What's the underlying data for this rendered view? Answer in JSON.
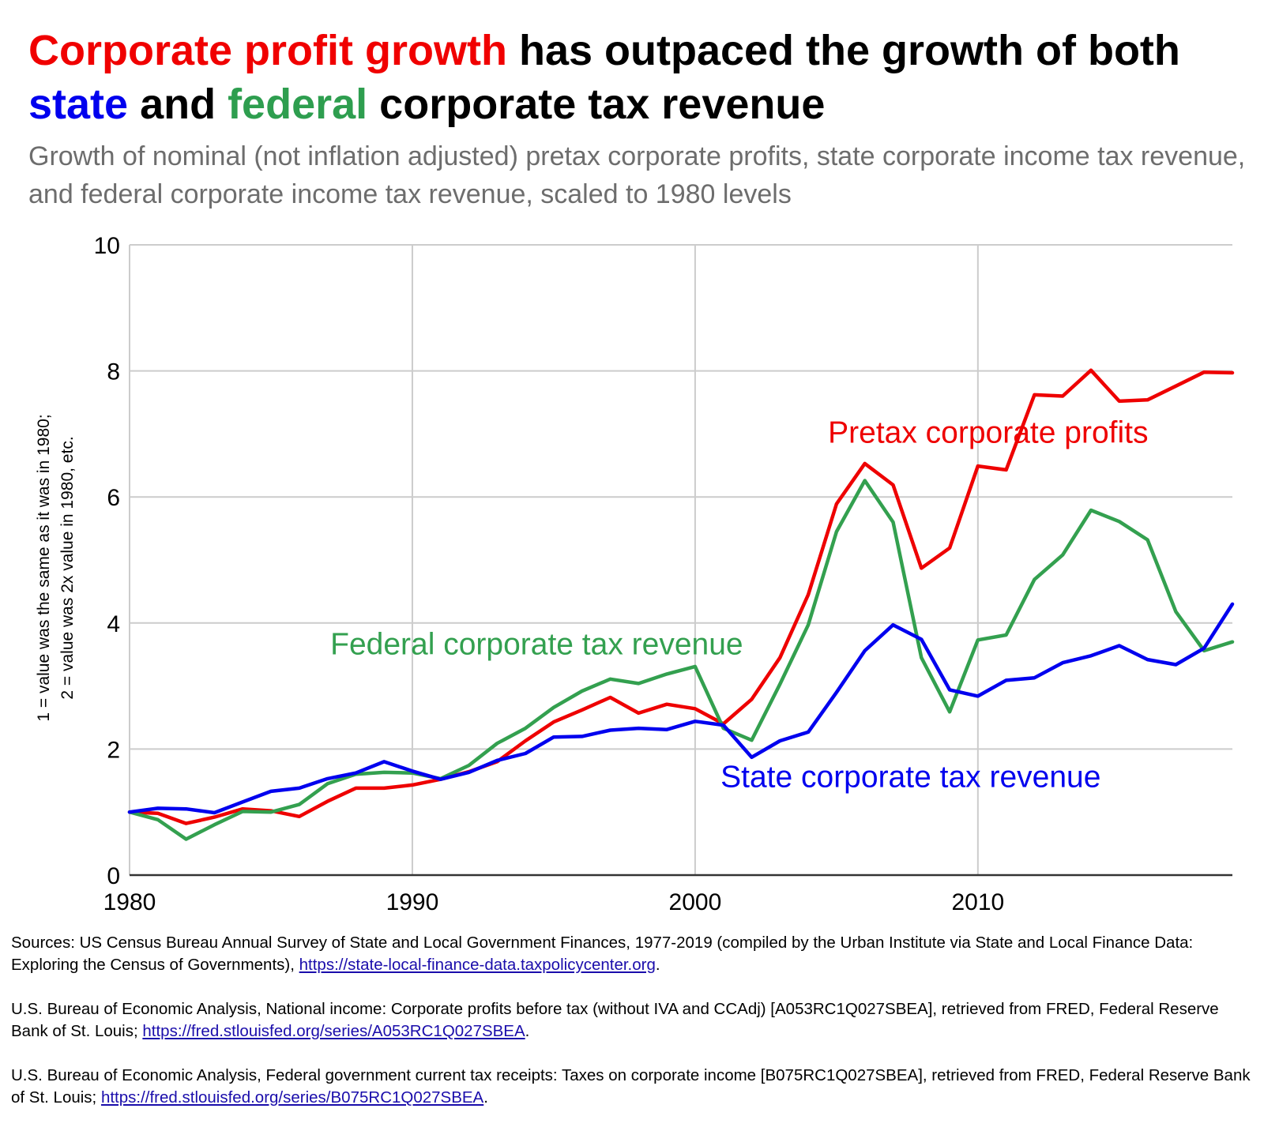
{
  "header": {
    "title_parts": [
      {
        "text": "Corporate profit growth",
        "color": "#f00000"
      },
      {
        "text": " has outpaced the growth of both ",
        "color": "#000000"
      },
      {
        "text": "state",
        "color": "#0000ee"
      },
      {
        "text": " and ",
        "color": "#000000"
      },
      {
        "text": "federal",
        "color": "#2e9e4f"
      },
      {
        "text": " corporate tax revenue",
        "color": "#000000"
      }
    ],
    "subtitle": "Growth of nominal (not inflation adjusted) pretax corporate profits, state corporate income tax revenue, and federal corporate income tax revenue, scaled to 1980 levels"
  },
  "chart_data": {
    "type": "line",
    "title": "",
    "xlabel": "",
    "ylabel_lines": [
      "1 = value was the same as it was in 1980;",
      "2 = value was 2x value in 1980, etc."
    ],
    "xlim": [
      1980,
      2019
    ],
    "ylim": [
      0,
      10
    ],
    "x_ticks": [
      1980,
      1990,
      2000,
      2010
    ],
    "y_ticks": [
      0,
      2,
      4,
      6,
      8,
      10
    ],
    "grid": true,
    "legend": "inline labels",
    "x": [
      1980,
      1981,
      1982,
      1983,
      1984,
      1985,
      1986,
      1987,
      1988,
      1989,
      1990,
      1991,
      1992,
      1993,
      1994,
      1995,
      1996,
      1997,
      1998,
      1999,
      2000,
      2001,
      2002,
      2003,
      2004,
      2005,
      2006,
      2007,
      2008,
      2009,
      2010,
      2011,
      2012,
      2013,
      2014,
      2015,
      2016,
      2017,
      2018,
      2019
    ],
    "series": [
      {
        "name": "Pretax corporate profits",
        "color": "#ee0000",
        "values": [
          1.0,
          0.98,
          0.82,
          0.92,
          1.05,
          1.02,
          0.93,
          1.17,
          1.38,
          1.38,
          1.43,
          1.52,
          1.64,
          1.8,
          2.13,
          2.43,
          2.62,
          2.82,
          2.57,
          2.71,
          2.64,
          2.4,
          2.79,
          3.45,
          4.45,
          5.89,
          6.53,
          6.19,
          4.87,
          5.19,
          6.49,
          6.43,
          7.62,
          7.6,
          8.01,
          7.52,
          7.54,
          7.76,
          7.98,
          7.97
        ]
      },
      {
        "name": "Federal corporate tax revenue",
        "color": "#33a04f",
        "values": [
          1.0,
          0.88,
          0.57,
          0.8,
          1.01,
          1.0,
          1.12,
          1.45,
          1.6,
          1.63,
          1.62,
          1.53,
          1.74,
          2.09,
          2.33,
          2.66,
          2.92,
          3.11,
          3.04,
          3.19,
          3.31,
          2.33,
          2.14,
          3.03,
          3.97,
          5.45,
          6.26,
          5.6,
          3.45,
          2.59,
          3.73,
          3.81,
          4.69,
          5.08,
          5.79,
          5.61,
          5.32,
          4.18,
          3.56,
          3.7
        ]
      },
      {
        "name": "State corporate tax revenue",
        "color": "#0000ee",
        "values": [
          1.0,
          1.06,
          1.05,
          0.99,
          1.16,
          1.33,
          1.38,
          1.53,
          1.62,
          1.8,
          1.65,
          1.52,
          1.63,
          1.82,
          1.93,
          2.19,
          2.2,
          2.3,
          2.33,
          2.31,
          2.44,
          2.38,
          1.87,
          2.13,
          2.27,
          2.9,
          3.56,
          3.97,
          3.74,
          2.94,
          2.84,
          3.09,
          3.13,
          3.37,
          3.48,
          3.64,
          3.42,
          3.34,
          3.6,
          4.3
        ]
      }
    ],
    "annotations": [
      {
        "text": "Pretax corporate profits",
        "color": "#ee0000",
        "x": 2004.7,
        "y": 6.86
      },
      {
        "text": "Federal corporate tax revenue",
        "color": "#33a04f",
        "x": 1987.1,
        "y": 3.5
      },
      {
        "text": "State corporate tax revenue",
        "color": "#0000ee",
        "x": 2000.9,
        "y": 1.4
      }
    ]
  },
  "sources": [
    {
      "text": "Sources: US Census Bureau Annual Survey of State and Local Government Finances, 1977-2019 (compiled by the Urban Institute via State and Local Finance Data: Exploring the Census of Governments), ",
      "link": "https://state-local-finance-data.taxpolicycenter.org",
      "tail": "."
    },
    {
      "text": "U.S. Bureau of Economic Analysis, National income: Corporate profits before tax (without IVA and CCAdj) [A053RC1Q027SBEA], retrieved from FRED, Federal Reserve Bank of St. Louis; ",
      "link": "https://fred.stlouisfed.org/series/A053RC1Q027SBEA",
      "tail": "."
    },
    {
      "text": "U.S. Bureau of Economic Analysis, Federal government current tax receipts: Taxes on corporate income [B075RC1Q027SBEA], retrieved from FRED, Federal Reserve Bank of St. Louis; ",
      "link": "https://fred.stlouisfed.org/series/B075RC1Q027SBEA",
      "tail": "."
    }
  ]
}
